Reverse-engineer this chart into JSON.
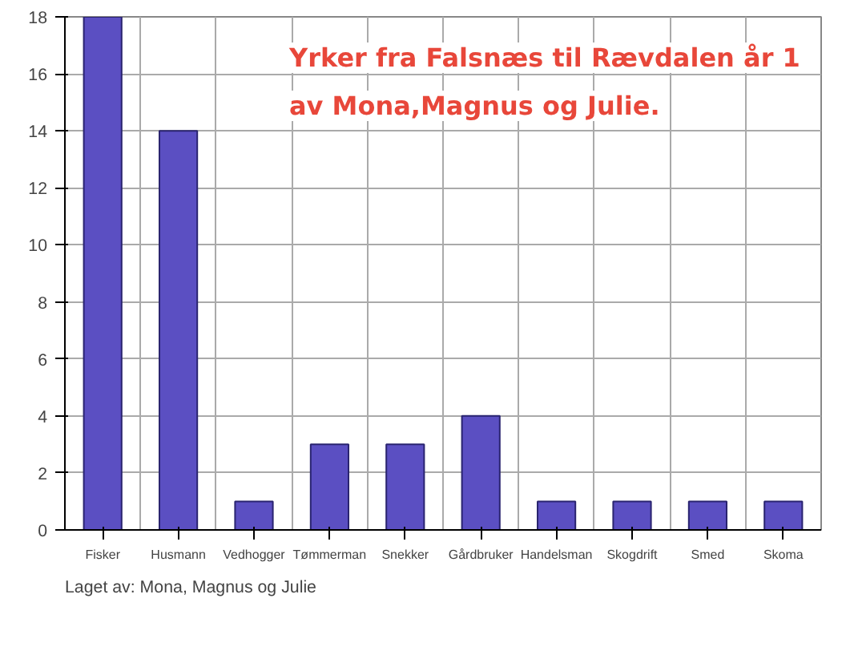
{
  "chart_data": {
    "type": "bar",
    "title": "Yrker fra Falsnæs til Rævdalen år 1",
    "subtitle": "av Mona,Magnus og Julie.",
    "categories": [
      "Fisker",
      "Husmann",
      "Vedhogger",
      "Tømmerman",
      "Snekker",
      "Gårdbruker",
      "Handelsman",
      "Skogdrift",
      "Smed",
      "Skoma"
    ],
    "values": [
      18,
      14,
      1,
      3,
      3,
      4,
      1,
      1,
      1,
      1
    ],
    "color": "#5b4fc2",
    "ylim": [
      0,
      18
    ],
    "yticks": [
      0,
      2,
      4,
      6,
      8,
      10,
      12,
      14,
      16,
      18
    ],
    "grid": true,
    "annotations": [
      "Laget av: Mona, Magnus og Julie"
    ]
  }
}
